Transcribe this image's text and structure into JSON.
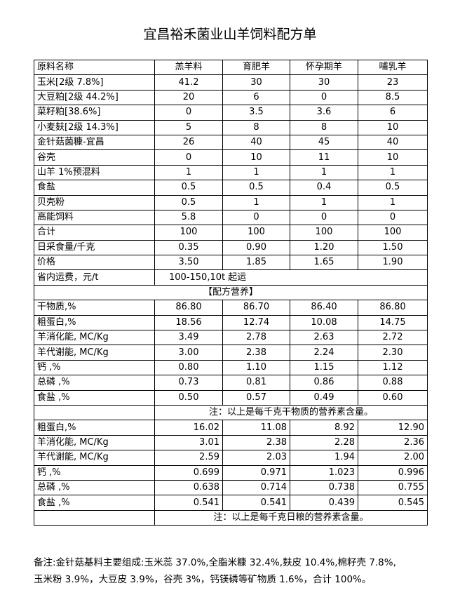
{
  "title": "宜昌裕禾菌业山羊饲料配方单",
  "header": [
    "原料名称",
    "羔羊料",
    "育肥羊",
    "怀孕期羊",
    "哺乳羊"
  ],
  "ingredients": [
    [
      "玉米[2级 7.8%]",
      "41.2",
      "30",
      "30",
      "23"
    ],
    [
      "大豆粕[2级 44.2%]",
      "20",
      "6",
      "0",
      "8.5"
    ],
    [
      "菜籽粕[38.6%]",
      "0",
      "3.5",
      "3.6",
      "6"
    ],
    [
      "小麦麸[2级 14.3%]",
      "5",
      "8",
      "8",
      "10"
    ],
    [
      "金针菇菌糠-宜昌",
      "26",
      "40",
      "45",
      "40"
    ],
    [
      "谷壳",
      "0",
      "10",
      "11",
      "10"
    ],
    [
      "山羊 1%预混料",
      "1",
      "1",
      "1",
      "1"
    ],
    [
      "食盐",
      "0.5",
      "0.5",
      "0.4",
      "0.5"
    ],
    [
      "贝壳粉",
      "0.5",
      "1",
      "1",
      "1"
    ],
    [
      "高能饲料",
      "5.8",
      "0",
      "0",
      "0"
    ],
    [
      "合计",
      "100",
      "100",
      "100",
      "100"
    ],
    [
      "日采食量/千克",
      "0.35",
      "0.90",
      "1.20",
      "1.50"
    ],
    [
      "价格",
      "3.50",
      "1.85",
      "1.65",
      "1.90"
    ]
  ],
  "shipping": {
    "label": "省内运费，元/t",
    "value": "100-150,10t 起运"
  },
  "nutrition_header": "【配方营养】",
  "dry_matter_rows": [
    [
      "干物质,%",
      "86.80",
      "86.70",
      "86.40",
      "86.80"
    ],
    [
      "粗蛋白,%",
      "18.56",
      "12.74",
      "10.08",
      "14.75"
    ],
    [
      "羊消化能, MC/Kg",
      "3.49",
      "2.78",
      "2.63",
      "2.72"
    ],
    [
      "羊代谢能, MC/Kg",
      "3.00",
      "2.38",
      "2.24",
      "2.30"
    ],
    [
      "钙 ,%",
      "0.80",
      "1.10",
      "1.15",
      "1.12"
    ],
    [
      "总磷 ,%",
      "0.73",
      "0.81",
      "0.86",
      "0.88"
    ],
    [
      "食盐 ,%",
      "0.50",
      "0.57",
      "0.49",
      "0.60"
    ]
  ],
  "dry_matter_note": "注：以上是每千克干物质的营养素含量。",
  "ration_rows": [
    [
      "粗蛋白,%",
      "16.02",
      "11.08",
      "8.92",
      "12.90"
    ],
    [
      "羊消化能, MC/Kg",
      "3.01",
      "2.38",
      "2.28",
      "2.36"
    ],
    [
      "羊代谢能, MC/Kg",
      "2.59",
      "2.03",
      "1.94",
      "2.00"
    ],
    [
      "钙 ,%",
      "0.699",
      "0.971",
      "1.023",
      "0.996"
    ],
    [
      "总磷 ,%",
      "0.638",
      "0.714",
      "0.738",
      "0.755"
    ],
    [
      "食盐 ,%",
      "0.541",
      "0.541",
      "0.439",
      "0.545"
    ]
  ],
  "ration_note": "注：以上是每千克日粮的营养素含量。",
  "remarks": {
    "line1": "备注:金针菇基料主要组成:玉米蕊 37.0%,全脂米糠 32.4%,麸皮 10.4%,棉籽壳 7.8%,",
    "line2": "玉米粉 3.9%，大豆皮 3.9%，谷壳 3%，钙镁磷等矿物质 1.6%，合计 100%。"
  }
}
